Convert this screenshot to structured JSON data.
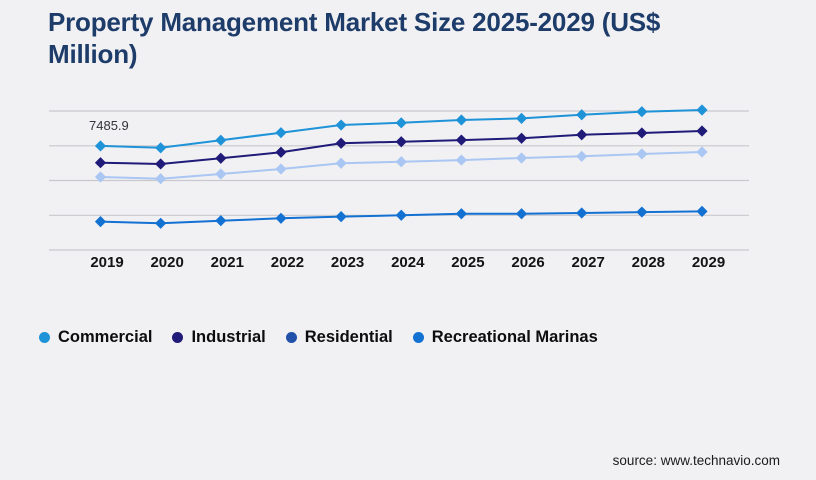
{
  "header": {
    "title": "Property Management Market Size 2025-2029 (US$ Million)"
  },
  "source": {
    "label": "source: www.technavio.com"
  },
  "chart_data": {
    "type": "line",
    "title": "Property Management Market Size 2025-2029 (US$ Million)",
    "xlabel": "",
    "ylabel": "US$ Million",
    "categories": [
      "2019",
      "2020",
      "2021",
      "2022",
      "2023",
      "2024",
      "2025",
      "2026",
      "2027",
      "2028",
      "2029"
    ],
    "series": [
      {
        "name": "Commercial",
        "legend_color": "#1f93d8",
        "line_color": "#1f93d8",
        "values": [
          7485.9,
          7350,
          7900,
          8440,
          8990,
          9150,
          9350,
          9470,
          9730,
          9950,
          10070
        ]
      },
      {
        "name": "Industrial",
        "legend_color": "#201a78",
        "line_color": "#201a78",
        "values": [
          6280,
          6190,
          6600,
          7030,
          7680,
          7790,
          7910,
          8040,
          8290,
          8420,
          8560
        ]
      },
      {
        "name": "Residential",
        "legend_color": "#2151a8",
        "line_color": "#aac6f2",
        "values": [
          5250,
          5130,
          5470,
          5830,
          6240,
          6350,
          6470,
          6620,
          6740,
          6910,
          7050
        ]
      },
      {
        "name": "Recreational Marinas",
        "legend_color": "#1371d2",
        "line_color": "#1371d2",
        "values": [
          2040,
          1920,
          2110,
          2280,
          2400,
          2500,
          2610,
          2610,
          2660,
          2730,
          2780
        ]
      }
    ],
    "annotations": [
      {
        "text": "7485.9",
        "series": "Commercial",
        "category": "2019"
      }
    ],
    "ylim": [
      0,
      10500
    ],
    "gridlines": [
      0,
      2500,
      5000,
      7500,
      10000
    ],
    "grid": true,
    "legend_position": "bottom-left",
    "marker_shape": "diamond",
    "gridline_color": "#c9c9cd",
    "background_color": "#f1f1f4"
  }
}
